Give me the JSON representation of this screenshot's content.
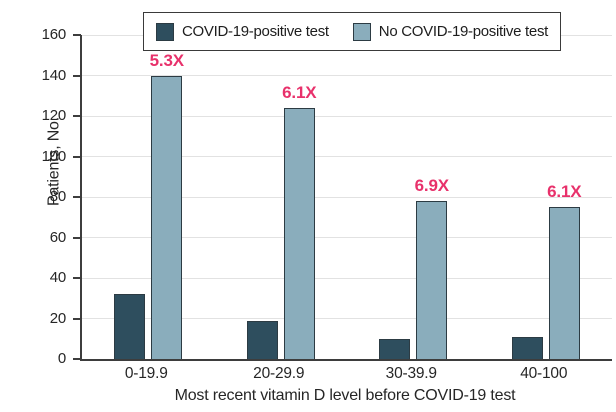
{
  "chart_data": {
    "type": "bar",
    "title": "",
    "xlabel": "Most recent vitamin D level before COVID-19 test",
    "ylabel": "Patients, No.",
    "categories": [
      "0-19.9",
      "20-29.9",
      "30-39.9",
      "40-100"
    ],
    "series": [
      {
        "name": "COVID-19-positive test",
        "color": "#2E4E5E",
        "values": [
          32,
          19,
          10,
          11
        ]
      },
      {
        "name": "No COVID-19-positive test",
        "color": "#8AADBC",
        "values": [
          140,
          124,
          78,
          75
        ]
      }
    ],
    "annotations": [
      "5.3X",
      "6.1X",
      "6.9X",
      "6.1X"
    ],
    "annotations_over_series": 1,
    "annotation_color": "#E8316B",
    "ylim": [
      0,
      160
    ],
    "ytick_step": 20,
    "grid": "horizontal",
    "legend_position": "top"
  }
}
